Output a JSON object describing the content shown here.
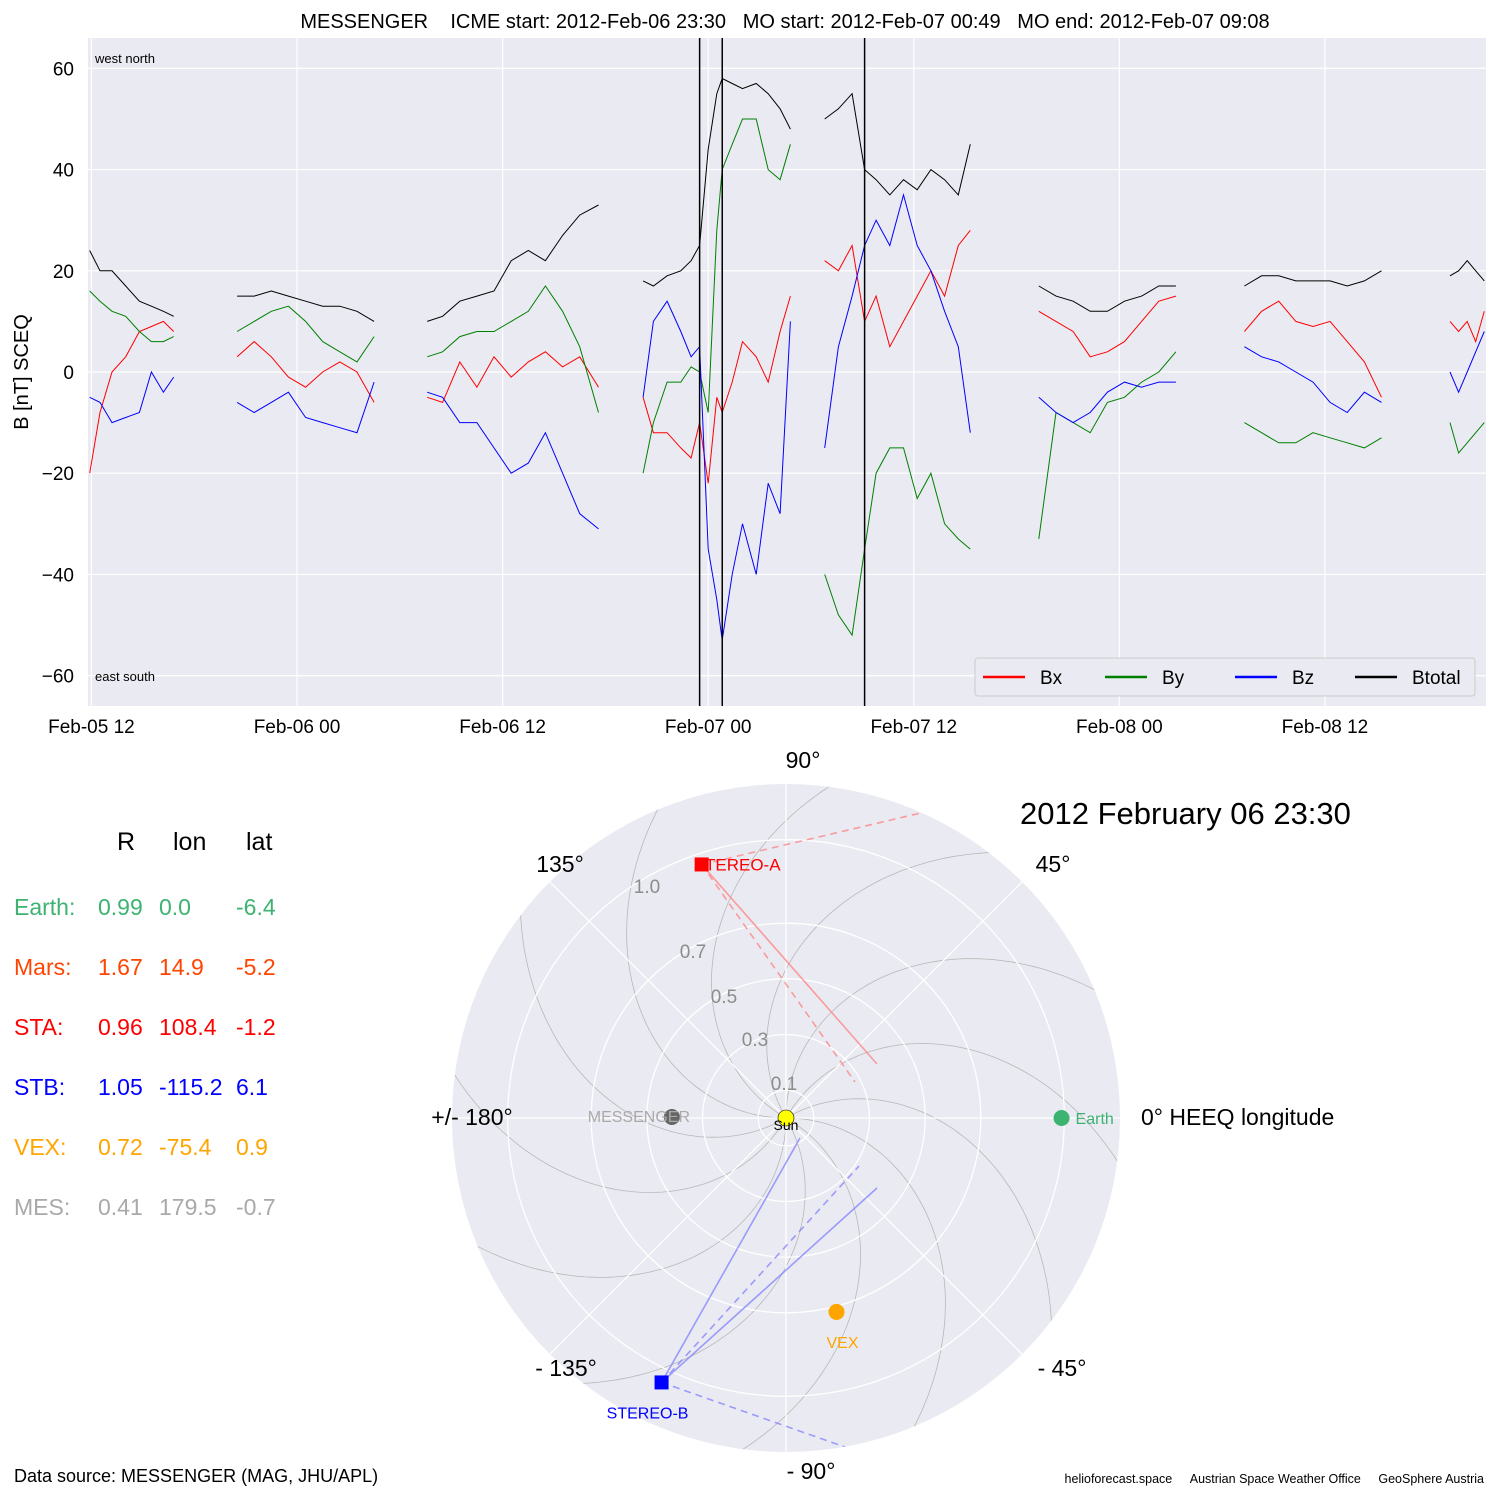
{
  "title": "MESSENGER    ICME start: 2012-Feb-06 23:30   MO start: 2012-Feb-07 00:49   MO end: 2012-Feb-07 09:08",
  "timeseries": {
    "ylabel": "B [nT] SCEQ",
    "corner_labels": {
      "top": "west    north",
      "bottom": "east    south"
    },
    "x_ticks": [
      "Feb-05 12",
      "Feb-06 00",
      "Feb-06 12",
      "Feb-07 00",
      "Feb-07 12",
      "Feb-08 00",
      "Feb-08 12"
    ],
    "y_ticks": [
      "60",
      "40",
      "20",
      "0",
      "−20",
      "−40",
      "−60"
    ],
    "legend": [
      "Bx",
      "By",
      "Bz",
      "Btotal"
    ],
    "colors": {
      "Bx": "#ff0000",
      "By": "#008000",
      "Bz": "#0000ff",
      "Btotal": "#000000"
    }
  },
  "chart_data": [
    {
      "type": "line",
      "title": "MESSENGER    ICME start: 2012-Feb-06 23:30   MO start: 2012-Feb-07 00:49   MO end: 2012-Feb-07 09:08",
      "xlabel": "",
      "ylabel": "B [nT] SCEQ",
      "x_unit": "hours since 2012-02-05 00:00",
      "xlim": [
        11.8,
        93.4
      ],
      "ylim": [
        -66,
        66
      ],
      "grid": true,
      "legend_position": "bottom-right",
      "vertical_lines": [
        {
          "label": "ICME start",
          "time": "2012-Feb-06 23:30",
          "x": 47.5
        },
        {
          "label": "MO start",
          "time": "2012-Feb-07 00:49",
          "x": 48.82
        },
        {
          "label": "MO end",
          "time": "2012-Feb-07 09:08",
          "x": 57.13
        }
      ],
      "segments": [
        {
          "x": [
            11.9,
            12.5,
            13.2,
            14.0,
            14.8,
            15.5,
            16.2,
            16.8
          ],
          "series": [
            {
              "name": "Bx",
              "values": [
                -20,
                -8,
                0,
                3,
                8,
                9,
                10,
                8
              ]
            },
            {
              "name": "By",
              "values": [
                16,
                14,
                12,
                11,
                8,
                6,
                6,
                7
              ]
            },
            {
              "name": "Bz",
              "values": [
                -5,
                -6,
                -10,
                -9,
                -8,
                0,
                -4,
                -1
              ]
            },
            {
              "name": "Btotal",
              "values": [
                24,
                20,
                20,
                17,
                14,
                13,
                12,
                11
              ]
            }
          ]
        },
        {
          "x": [
            20.5,
            21.5,
            22.5,
            23.5,
            24.5,
            25.5,
            26.5,
            27.5,
            28.5
          ],
          "series": [
            {
              "name": "Bx",
              "values": [
                3,
                6,
                3,
                -1,
                -3,
                0,
                2,
                0,
                -6
              ]
            },
            {
              "name": "By",
              "values": [
                8,
                10,
                12,
                13,
                10,
                6,
                4,
                2,
                7
              ]
            },
            {
              "name": "Bz",
              "values": [
                -6,
                -8,
                -6,
                -4,
                -9,
                -10,
                -11,
                -12,
                -2
              ]
            },
            {
              "name": "Btotal",
              "values": [
                15,
                15,
                16,
                15,
                14,
                13,
                13,
                12,
                10
              ]
            }
          ]
        },
        {
          "x": [
            31.6,
            32.5,
            33.5,
            34.5,
            35.5,
            36.5,
            37.5,
            38.5,
            39.5,
            40.5,
            41.6
          ],
          "series": [
            {
              "name": "Bx",
              "values": [
                -5,
                -6,
                2,
                -3,
                3,
                -1,
                2,
                4,
                1,
                3,
                -3
              ]
            },
            {
              "name": "By",
              "values": [
                3,
                4,
                7,
                8,
                8,
                10,
                12,
                17,
                12,
                5,
                -8
              ]
            },
            {
              "name": "Bz",
              "values": [
                -4,
                -5,
                -10,
                -10,
                -15,
                -20,
                -18,
                -12,
                -20,
                -28,
                -31
              ]
            },
            {
              "name": "Btotal",
              "values": [
                10,
                11,
                14,
                15,
                16,
                22,
                24,
                22,
                27,
                31,
                33
              ]
            }
          ]
        },
        {
          "x": [
            44.2,
            44.8,
            45.6,
            46.4,
            47.0,
            47.5,
            48.0,
            48.5,
            48.82,
            49.4,
            50.0,
            50.8,
            51.5,
            52.2,
            52.8
          ],
          "series": [
            {
              "name": "Bx",
              "values": [
                -5,
                -12,
                -12,
                -15,
                -17,
                -10,
                -22,
                -5,
                -8,
                -2,
                6,
                3,
                -2,
                8,
                15
              ]
            },
            {
              "name": "By",
              "values": [
                -20,
                -10,
                -2,
                -2,
                1,
                0,
                -8,
                28,
                40,
                45,
                50,
                50,
                40,
                38,
                45
              ]
            },
            {
              "name": "Bz",
              "values": [
                -5,
                10,
                14,
                8,
                3,
                5,
                -35,
                -45,
                -53,
                -40,
                -30,
                -40,
                -22,
                -28,
                10
              ]
            },
            {
              "name": "Btotal",
              "values": [
                18,
                17,
                19,
                20,
                22,
                25,
                44,
                55,
                58,
                57,
                56,
                57,
                55,
                52,
                48
              ]
            }
          ]
        },
        {
          "x": [
            54.8,
            55.6,
            56.4,
            57.13,
            57.8,
            58.6,
            59.4,
            60.2,
            61.0,
            61.8,
            62.6,
            63.3
          ],
          "series": [
            {
              "name": "Bx",
              "values": [
                22,
                20,
                25,
                10,
                15,
                5,
                10,
                15,
                20,
                15,
                25,
                28
              ]
            },
            {
              "name": "By",
              "values": [
                -40,
                -48,
                -52,
                -35,
                -20,
                -15,
                -15,
                -25,
                -20,
                -30,
                -33,
                -35
              ]
            },
            {
              "name": "Bz",
              "values": [
                -15,
                5,
                15,
                25,
                30,
                25,
                35,
                25,
                20,
                12,
                5,
                -12
              ]
            },
            {
              "name": "Btotal",
              "values": [
                50,
                52,
                55,
                40,
                38,
                35,
                38,
                36,
                40,
                38,
                35,
                45
              ]
            }
          ]
        },
        {
          "x": [
            67.3,
            68.3,
            69.3,
            70.3,
            71.3,
            72.3,
            73.3,
            74.3,
            75.3
          ],
          "series": [
            {
              "name": "Bx",
              "values": [
                12,
                10,
                8,
                3,
                4,
                6,
                10,
                14,
                15
              ]
            },
            {
              "name": "By",
              "values": [
                -33,
                -8,
                -10,
                -12,
                -6,
                -5,
                -2,
                0,
                4
              ]
            },
            {
              "name": "Bz",
              "values": [
                -5,
                -8,
                -10,
                -8,
                -4,
                -2,
                -3,
                -2,
                -2
              ]
            },
            {
              "name": "Btotal",
              "values": [
                17,
                15,
                14,
                12,
                12,
                14,
                15,
                17,
                17
              ]
            }
          ]
        },
        {
          "x": [
            79.3,
            80.3,
            81.3,
            82.3,
            83.3,
            84.3,
            85.3,
            86.3,
            87.3
          ],
          "series": [
            {
              "name": "Bx",
              "values": [
                8,
                12,
                14,
                10,
                9,
                10,
                6,
                2,
                -5
              ]
            },
            {
              "name": "By",
              "values": [
                -10,
                -12,
                -14,
                -14,
                -12,
                -13,
                -14,
                -15,
                -13
              ]
            },
            {
              "name": "Bz",
              "values": [
                5,
                3,
                2,
                0,
                -2,
                -6,
                -8,
                -4,
                -6
              ]
            },
            {
              "name": "Btotal",
              "values": [
                17,
                19,
                19,
                18,
                18,
                18,
                17,
                18,
                20
              ]
            }
          ]
        },
        {
          "x": [
            91.3,
            91.8,
            92.3,
            92.8,
            93.3
          ],
          "series": [
            {
              "name": "Bx",
              "values": [
                10,
                8,
                10,
                6,
                12
              ]
            },
            {
              "name": "By",
              "values": [
                -10,
                -16,
                -14,
                -12,
                -10
              ]
            },
            {
              "name": "Bz",
              "values": [
                0,
                -4,
                0,
                4,
                8
              ]
            },
            {
              "name": "Btotal",
              "values": [
                19,
                20,
                22,
                20,
                18
              ]
            }
          ]
        }
      ]
    },
    {
      "type": "scatter",
      "subtype": "polar",
      "title": "2012 February 06  23:30",
      "angle_labels": [
        "90°",
        "45°",
        "0° HEEQ longitude",
        "- 45°",
        "- 90°",
        "- 135°",
        "+/- 180°",
        "135°"
      ],
      "radial_ticks": [
        "0.1",
        "0.3",
        "0.5",
        "0.7",
        "1.0"
      ],
      "points": [
        {
          "name": "Sun",
          "r": 0.0,
          "lon": 0.0,
          "color": "#ffff00"
        },
        {
          "name": "Earth",
          "r": 0.99,
          "lon": 0.0,
          "color": "#3cb371"
        },
        {
          "name": "STEREO-A",
          "r": 0.96,
          "lon": 108.4,
          "color": "#ff0000"
        },
        {
          "name": "STEREO-B",
          "r": 1.05,
          "lon": -115.2,
          "color": "#0000ff"
        },
        {
          "name": "VEX",
          "r": 0.72,
          "lon": -75.4,
          "color": "#ffa500"
        },
        {
          "name": "MESSENGER",
          "r": 0.41,
          "lon": 179.5,
          "color": "#666666"
        }
      ]
    }
  ],
  "positions": {
    "headers": [
      "R",
      "lon",
      "lat"
    ],
    "rows": [
      {
        "label": "Earth:",
        "r": "0.99",
        "lon": "0.0",
        "lat": "-6.4",
        "color": "#3cb371"
      },
      {
        "label": "Mars:",
        "r": "1.67",
        "lon": "14.9",
        "lat": "-5.2",
        "color": "#ff4500"
      },
      {
        "label": "STA:",
        "r": "0.96",
        "lon": "108.4",
        "lat": "-1.2",
        "color": "#ff0000"
      },
      {
        "label": "STB:",
        "r": "1.05",
        "lon": "-115.2",
        "lat": "6.1",
        "color": "#0000ff"
      },
      {
        "label": "VEX:",
        "r": "0.72",
        "lon": "-75.4",
        "lat": "0.9",
        "color": "#ffa500"
      },
      {
        "label": "MES:",
        "r": "0.41",
        "lon": "179.5",
        "lat": "-0.7",
        "color": "#a9a9a9"
      }
    ]
  },
  "data_source": "Data source: MESSENGER (MAG, JHU/APL)",
  "credits": [
    "helioforecast.space",
    "Austrian Space Weather Office",
    "GeoSphere Austria"
  ]
}
